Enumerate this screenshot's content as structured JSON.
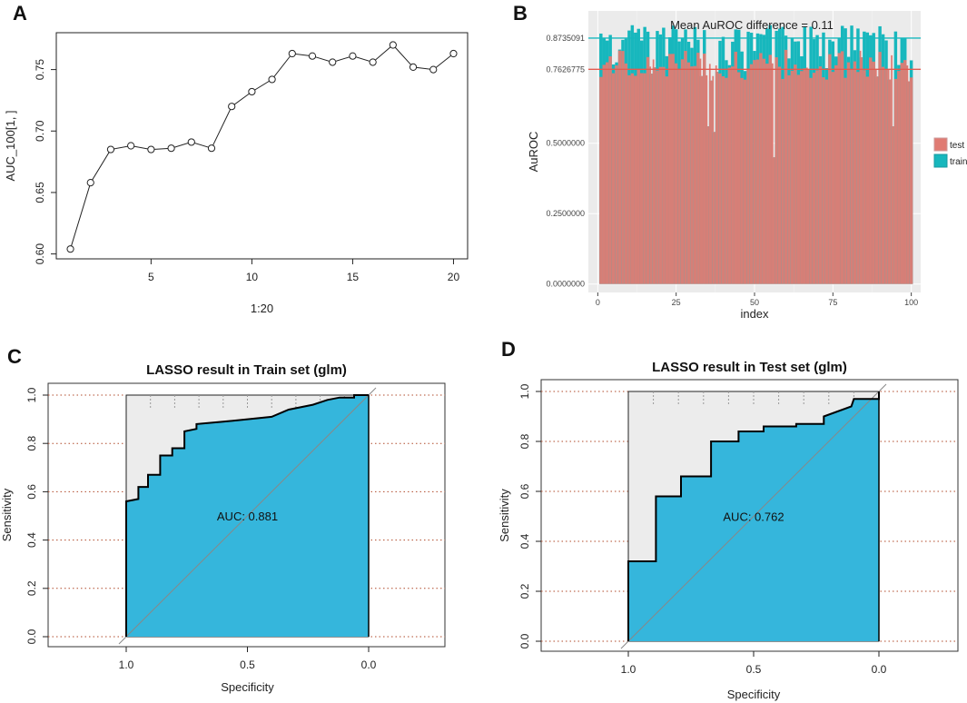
{
  "panels": {
    "A": "A",
    "B": "B",
    "C": "C",
    "D": "D"
  },
  "chart_data": [
    {
      "id": "A",
      "type": "line",
      "title": "",
      "xlabel": "1:20",
      "ylabel": "AUC_100[1, ]",
      "x": [
        1,
        2,
        3,
        4,
        5,
        6,
        7,
        8,
        9,
        10,
        11,
        12,
        13,
        14,
        15,
        16,
        17,
        18,
        19,
        20
      ],
      "y": [
        0.604,
        0.658,
        0.685,
        0.688,
        0.685,
        0.686,
        0.691,
        0.686,
        0.72,
        0.732,
        0.742,
        0.763,
        0.761,
        0.756,
        0.761,
        0.756,
        0.77,
        0.752,
        0.75,
        0.763
      ],
      "xlim": [
        0.3,
        20.7
      ],
      "ylim": [
        0.596,
        0.78
      ],
      "xticks": [
        "5",
        "10",
        "15",
        "20"
      ],
      "yticks": [
        "0.60",
        "0.65",
        "0.70",
        "0.75"
      ],
      "marker": "open-circle"
    },
    {
      "id": "B",
      "type": "bar",
      "title": "Mean AuROC difference = 0.11",
      "xlabel": "index",
      "ylabel": "AuROC",
      "xlim": [
        -3,
        103
      ],
      "ylim": [
        -0.03,
        0.97
      ],
      "xticks": [
        "0",
        "25",
        "50",
        "75",
        "100"
      ],
      "yticks": [
        "0.0000000",
        "0.2500000",
        "0.5000000",
        "0.7626775",
        "0.8735091"
      ],
      "hlines": [
        {
          "value": 0.8735091,
          "label": "0.8735091",
          "color": "#17b7bd"
        },
        {
          "value": 0.7626775,
          "label": "0.7626775",
          "color": "#e35a4f"
        }
      ],
      "legend": [
        "test",
        "train"
      ],
      "series_colors": {
        "test": "#e07b73",
        "train": "#17b7bd"
      },
      "test_mean": 0.7626775,
      "train_mean": 0.8735091,
      "n": 100
    },
    {
      "id": "C",
      "type": "roc",
      "title": "LASSO result in Train set (glm)",
      "xlabel": "Specificity",
      "ylabel": "Sensitivity",
      "auc_text": "AUC: 0.881",
      "xticks": [
        "1.0",
        "0.5",
        "0.0"
      ],
      "yticks": [
        "0.0",
        "0.2",
        "0.4",
        "0.6",
        "0.8",
        "1.0"
      ],
      "roc_points": [
        [
          1.0,
          0.0
        ],
        [
          1.0,
          0.56
        ],
        [
          0.95,
          0.57
        ],
        [
          0.95,
          0.62
        ],
        [
          0.91,
          0.62
        ],
        [
          0.91,
          0.67
        ],
        [
          0.86,
          0.67
        ],
        [
          0.86,
          0.75
        ],
        [
          0.81,
          0.75
        ],
        [
          0.81,
          0.78
        ],
        [
          0.76,
          0.78
        ],
        [
          0.76,
          0.8
        ],
        [
          0.76,
          0.85
        ],
        [
          0.71,
          0.86
        ],
        [
          0.71,
          0.88
        ],
        [
          0.6,
          0.89
        ],
        [
          0.5,
          0.9
        ],
        [
          0.4,
          0.91
        ],
        [
          0.33,
          0.94
        ],
        [
          0.23,
          0.96
        ],
        [
          0.17,
          0.98
        ],
        [
          0.12,
          0.99
        ],
        [
          0.06,
          0.99
        ],
        [
          0.06,
          1.0
        ],
        [
          0.0,
          1.0
        ]
      ]
    },
    {
      "id": "D",
      "type": "roc",
      "title": "LASSO result in Test set (glm)",
      "xlabel": "Specificity",
      "ylabel": "Sensitivity",
      "auc_text": "AUC: 0.762",
      "xticks": [
        "1.0",
        "0.5",
        "0.0"
      ],
      "yticks": [
        "0.0",
        "0.2",
        "0.4",
        "0.6",
        "0.8",
        "1.0"
      ],
      "roc_points": [
        [
          1.0,
          0.0
        ],
        [
          1.0,
          0.32
        ],
        [
          0.89,
          0.32
        ],
        [
          0.89,
          0.58
        ],
        [
          0.79,
          0.58
        ],
        [
          0.79,
          0.66
        ],
        [
          0.67,
          0.66
        ],
        [
          0.67,
          0.8
        ],
        [
          0.56,
          0.8
        ],
        [
          0.56,
          0.84
        ],
        [
          0.46,
          0.84
        ],
        [
          0.46,
          0.86
        ],
        [
          0.33,
          0.86
        ],
        [
          0.33,
          0.87
        ],
        [
          0.22,
          0.87
        ],
        [
          0.22,
          0.9
        ],
        [
          0.11,
          0.94
        ],
        [
          0.1,
          0.97
        ],
        [
          0.0,
          0.97
        ],
        [
          0.0,
          1.0
        ]
      ]
    }
  ]
}
